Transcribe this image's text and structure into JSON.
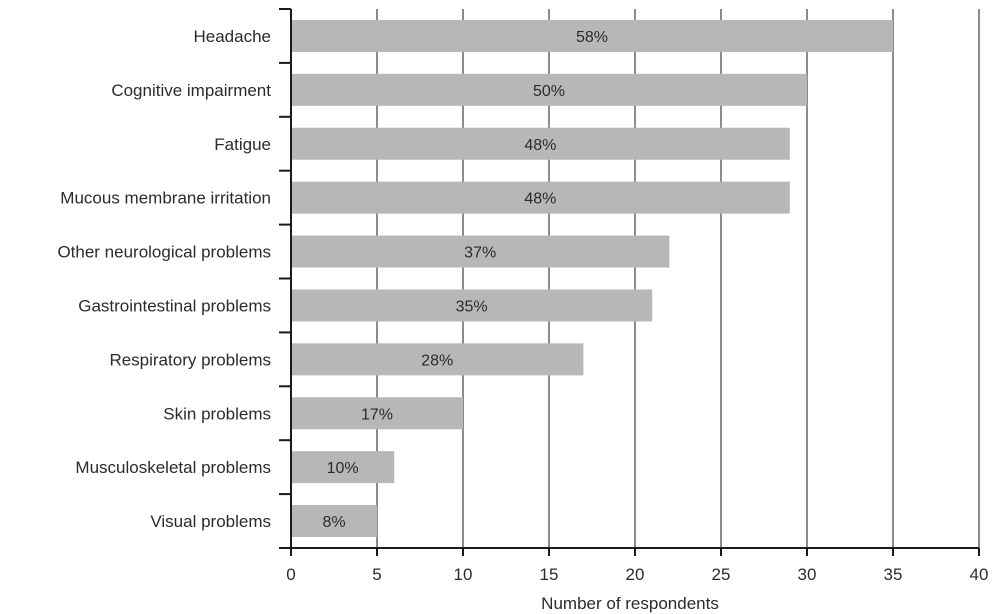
{
  "chart_data": {
    "type": "bar",
    "orientation": "horizontal",
    "title": "",
    "xlabel": "Number of respondents",
    "ylabel": "",
    "xlim": [
      0,
      40
    ],
    "x_ticks": [
      "0",
      "5",
      "10",
      "15",
      "20",
      "25",
      "30",
      "35",
      "40"
    ],
    "grid": "vertical",
    "legend": "none",
    "categories": [
      "Headache",
      "Cognitive impairment",
      "Fatigue",
      "Mucous membrane irritation",
      "Other neurological problems",
      "Gastrointestinal problems",
      "Respiratory problems",
      "Skin problems",
      "Musculoskeletal problems",
      "Visual problems"
    ],
    "values": [
      35,
      30,
      29,
      29,
      22,
      21,
      17,
      10,
      6,
      5
    ],
    "data_labels": [
      "58%",
      "50%",
      "48%",
      "48%",
      "37%",
      "35%",
      "28%",
      "17%",
      "10%",
      "8%"
    ],
    "colors": {
      "bar": "#b7b7b7",
      "axis": "#1a1a1a",
      "grid": "#1a1a1a"
    }
  }
}
